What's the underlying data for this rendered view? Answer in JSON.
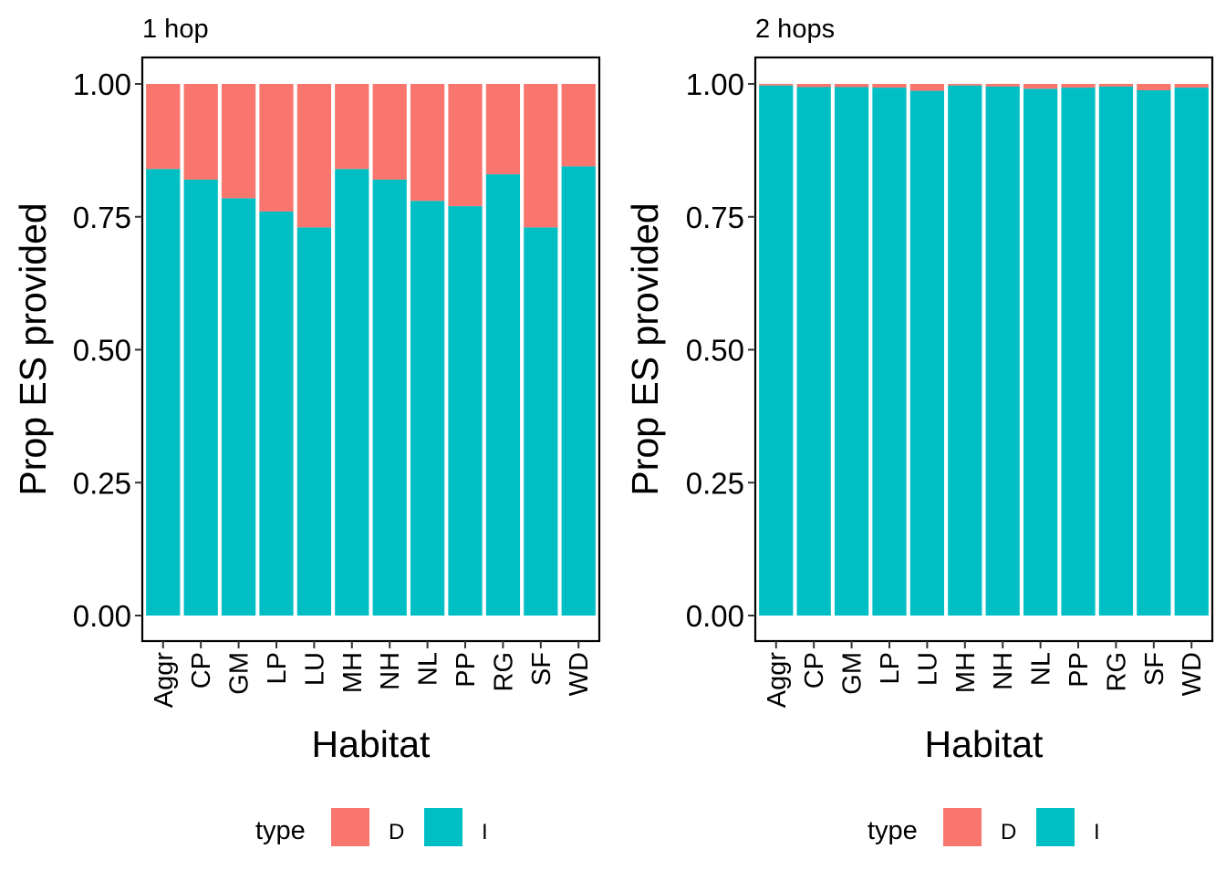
{
  "colors": {
    "D": "#F8766D",
    "I": "#00BFC4",
    "panel_border": "#000000",
    "background": "#FFFFFF"
  },
  "chart_data": [
    {
      "type": "bar",
      "stacked": true,
      "title": "1 hop",
      "xlabel": "Habitat",
      "ylabel": "Prop ES provided",
      "ylim": [
        0,
        1
      ],
      "yticks": [
        "0.00",
        "0.25",
        "0.50",
        "0.75",
        "1.00"
      ],
      "categories": [
        "Aggr",
        "CP",
        "GM",
        "LP",
        "LU",
        "MH",
        "NH",
        "NL",
        "PP",
        "RG",
        "SF",
        "WD"
      ],
      "series": [
        {
          "name": "I",
          "values": [
            0.84,
            0.82,
            0.785,
            0.76,
            0.73,
            0.84,
            0.82,
            0.78,
            0.77,
            0.83,
            0.73,
            0.845
          ]
        },
        {
          "name": "D",
          "values": [
            0.16,
            0.18,
            0.215,
            0.24,
            0.27,
            0.16,
            0.18,
            0.22,
            0.23,
            0.17,
            0.27,
            0.155
          ]
        }
      ],
      "legend": {
        "title": "type",
        "entries": [
          "D",
          "I"
        ],
        "position": "bottom"
      },
      "grid": false
    },
    {
      "type": "bar",
      "stacked": true,
      "title": "2 hops",
      "xlabel": "Habitat",
      "ylabel": "Prop ES provided",
      "ylim": [
        0,
        1
      ],
      "yticks": [
        "0.00",
        "0.25",
        "0.50",
        "0.75",
        "1.00"
      ],
      "categories": [
        "Aggr",
        "CP",
        "GM",
        "LP",
        "LU",
        "MH",
        "NH",
        "NL",
        "PP",
        "RG",
        "SF",
        "WD"
      ],
      "series": [
        {
          "name": "I",
          "values": [
            0.997,
            0.994,
            0.994,
            0.993,
            0.987,
            0.997,
            0.995,
            0.991,
            0.993,
            0.995,
            0.988,
            0.993
          ]
        },
        {
          "name": "D",
          "values": [
            0.003,
            0.006,
            0.006,
            0.007,
            0.013,
            0.003,
            0.005,
            0.009,
            0.007,
            0.005,
            0.012,
            0.007
          ]
        }
      ],
      "legend": {
        "title": "type",
        "entries": [
          "D",
          "I"
        ],
        "position": "bottom"
      },
      "grid": false
    }
  ]
}
